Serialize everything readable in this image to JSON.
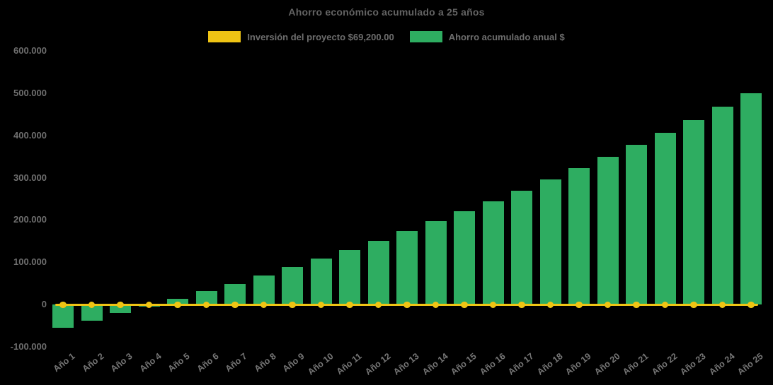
{
  "title": "Ahorro económico acumulado a 25 años",
  "legend": [
    {
      "label": "Inversión del proyecto $69,200.00",
      "color": "#EFC414",
      "series": "line"
    },
    {
      "label": "Ahorro acumulado anual $",
      "color": "#2EAD61",
      "series": "bar"
    }
  ],
  "colors": {
    "background": "#000000",
    "bar": "#2EAD61",
    "line": "#EFC414",
    "text": "#6E6E6E"
  },
  "chart_data": {
    "type": "bar",
    "title": "Ahorro económico acumulado a 25 años",
    "categories": [
      "Año 1",
      "Año 2",
      "Año 3",
      "Año 4",
      "Año 5",
      "Año 6",
      "Año 7",
      "Año 8",
      "Año 9",
      "Año 10",
      "Año 11",
      "Año 12",
      "Año 13",
      "Año 14",
      "Año 15",
      "Año 16",
      "Año 17",
      "Año 18",
      "Año 19",
      "Año 20",
      "Año 21",
      "Año 22",
      "Año 23",
      "Año 24",
      "Año 25"
    ],
    "series": [
      {
        "name": "Ahorro acumulado anual $",
        "type": "bar",
        "color": "#2EAD61",
        "values": [
          -56000,
          -38500,
          -20500,
          -5000,
          13500,
          32000,
          49000,
          68500,
          88000,
          108000,
          129500,
          151000,
          174000,
          197500,
          221000,
          245000,
          270000,
          296000,
          322500,
          349000,
          378000,
          406500,
          437000,
          468500,
          500500
        ]
      },
      {
        "name": "Inversión del proyecto $69,200.00",
        "type": "line",
        "color": "#EFC414",
        "values": [
          0,
          0,
          0,
          0,
          0,
          0,
          0,
          0,
          0,
          0,
          0,
          0,
          0,
          0,
          0,
          0,
          0,
          0,
          0,
          0,
          0,
          0,
          0,
          0,
          0
        ],
        "marker": "circle"
      }
    ],
    "ylim": [
      -100000,
      600000
    ],
    "ytick_step": 100000,
    "ytick_labels": [
      "600.000",
      "500.000",
      "400.000",
      "300.000",
      "200.000",
      "100.000",
      "0",
      "-100.000"
    ],
    "grid": false,
    "legend_position": "top",
    "xlabel": "",
    "ylabel": ""
  }
}
